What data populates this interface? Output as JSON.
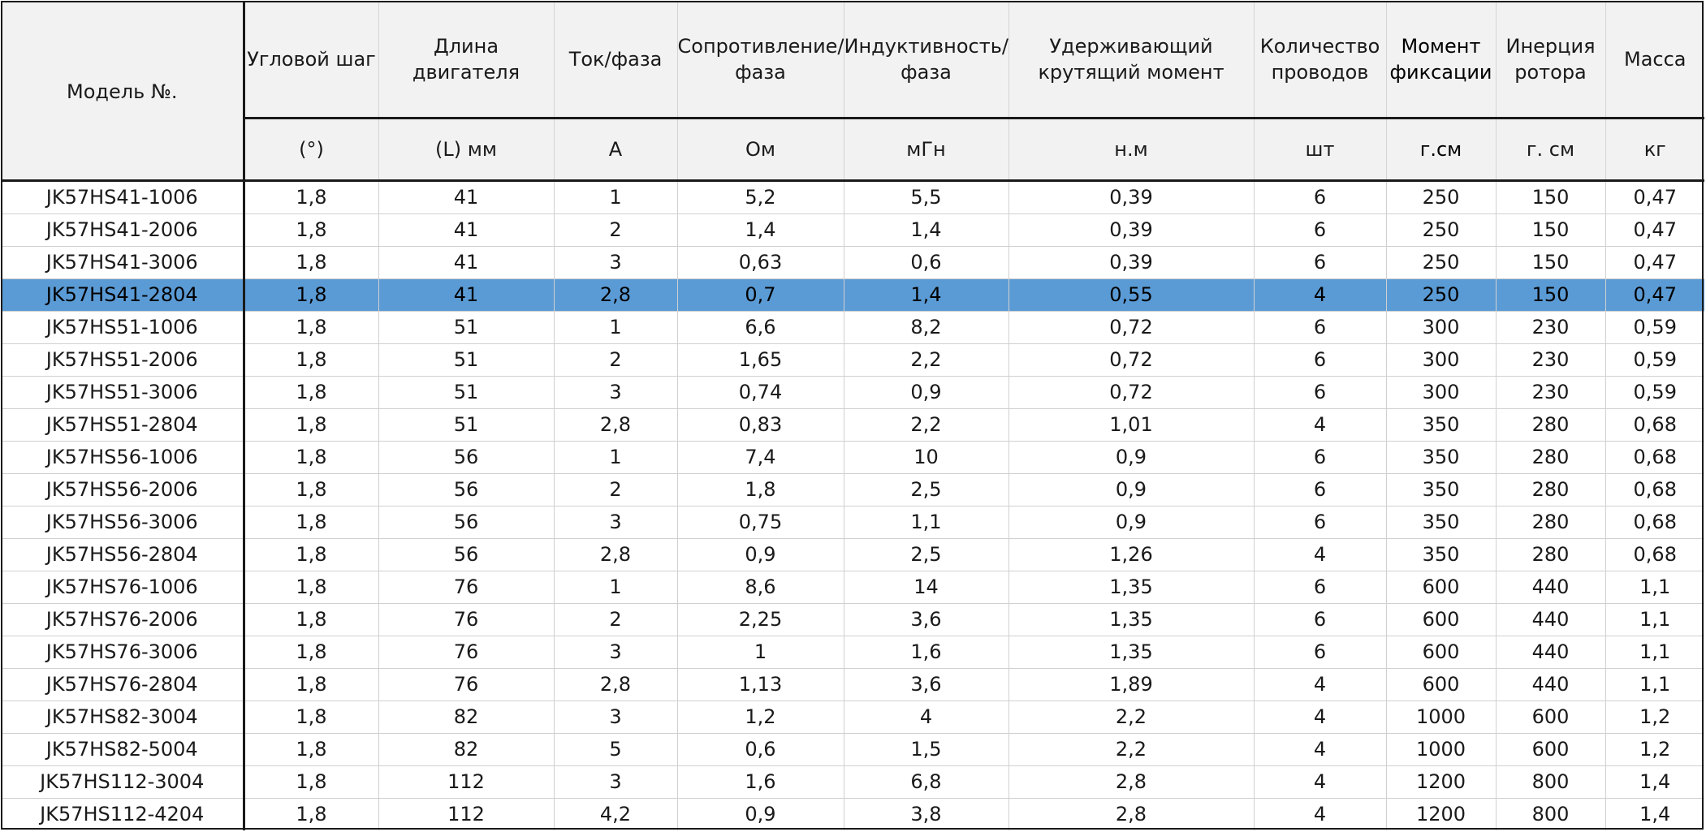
{
  "columns": [
    {
      "name": "Модель №.",
      "unit": ""
    },
    {
      "name": "Угловой шаг",
      "unit": "(°)"
    },
    {
      "name": "Длина двигателя",
      "unit": "(L) мм"
    },
    {
      "name": "Ток/фаза",
      "unit": "A"
    },
    {
      "name": "Сопротивление/ фаза",
      "unit": "Ом"
    },
    {
      "name": "Индуктивность/ фаза",
      "unit": "мГн"
    },
    {
      "name": "Удерживающий крутящий момент",
      "unit": "н.м"
    },
    {
      "name": "Количество проводов",
      "unit": "шт"
    },
    {
      "name": "Момент фиксации",
      "unit": "г.см"
    },
    {
      "name": "Инерция ротора",
      "unit": "г. см"
    },
    {
      "name": "Масса",
      "unit": "кг"
    }
  ],
  "highlighted_row": 3,
  "highlight_color": "#5b9bd5",
  "rows": [
    [
      "JK57HS41-1006",
      "1,8",
      "41",
      "1",
      "5,2",
      "5,5",
      "0,39",
      "6",
      "250",
      "150",
      "0,47"
    ],
    [
      "JK57HS41-2006",
      "1,8",
      "41",
      "2",
      "1,4",
      "1,4",
      "0,39",
      "6",
      "250",
      "150",
      "0,47"
    ],
    [
      "JK57HS41-3006",
      "1,8",
      "41",
      "3",
      "0,63",
      "0,6",
      "0,39",
      "6",
      "250",
      "150",
      "0,47"
    ],
    [
      "JK57HS41-2804",
      "1,8",
      "41",
      "2,8",
      "0,7",
      "1,4",
      "0,55",
      "4",
      "250",
      "150",
      "0,47"
    ],
    [
      "JK57HS51-1006",
      "1,8",
      "51",
      "1",
      "6,6",
      "8,2",
      "0,72",
      "6",
      "300",
      "230",
      "0,59"
    ],
    [
      "JK57HS51-2006",
      "1,8",
      "51",
      "2",
      "1,65",
      "2,2",
      "0,72",
      "6",
      "300",
      "230",
      "0,59"
    ],
    [
      "JK57HS51-3006",
      "1,8",
      "51",
      "3",
      "0,74",
      "0,9",
      "0,72",
      "6",
      "300",
      "230",
      "0,59"
    ],
    [
      "JK57HS51-2804",
      "1,8",
      "51",
      "2,8",
      "0,83",
      "2,2",
      "1,01",
      "4",
      "350",
      "280",
      "0,68"
    ],
    [
      "JK57HS56-1006",
      "1,8",
      "56",
      "1",
      "7,4",
      "10",
      "0,9",
      "6",
      "350",
      "280",
      "0,68"
    ],
    [
      "JK57HS56-2006",
      "1,8",
      "56",
      "2",
      "1,8",
      "2,5",
      "0,9",
      "6",
      "350",
      "280",
      "0,68"
    ],
    [
      "JK57HS56-3006",
      "1,8",
      "56",
      "3",
      "0,75",
      "1,1",
      "0,9",
      "6",
      "350",
      "280",
      "0,68"
    ],
    [
      "JK57HS56-2804",
      "1,8",
      "56",
      "2,8",
      "0,9",
      "2,5",
      "1,26",
      "4",
      "350",
      "280",
      "0,68"
    ],
    [
      "JK57HS76-1006",
      "1,8",
      "76",
      "1",
      "8,6",
      "14",
      "1,35",
      "6",
      "600",
      "440",
      "1,1"
    ],
    [
      "JK57HS76-2006",
      "1,8",
      "76",
      "2",
      "2,25",
      "3,6",
      "1,35",
      "6",
      "600",
      "440",
      "1,1"
    ],
    [
      "JK57HS76-3006",
      "1,8",
      "76",
      "3",
      "1",
      "1,6",
      "1,35",
      "6",
      "600",
      "440",
      "1,1"
    ],
    [
      "JK57HS76-2804",
      "1,8",
      "76",
      "2,8",
      "1,13",
      "3,6",
      "1,89",
      "4",
      "600",
      "440",
      "1,1"
    ],
    [
      "JK57HS82-3004",
      "1,8",
      "82",
      "3",
      "1,2",
      "4",
      "2,2",
      "4",
      "1000",
      "600",
      "1,2"
    ],
    [
      "JK57HS82-5004",
      "1,8",
      "82",
      "5",
      "0,6",
      "1,5",
      "2,2",
      "4",
      "1000",
      "600",
      "1,2"
    ],
    [
      "JK57HS112-3004",
      "1,8",
      "112",
      "3",
      "1,6",
      "6,8",
      "2,8",
      "4",
      "1200",
      "800",
      "1,4"
    ],
    [
      "JK57HS112-4204",
      "1,8",
      "112",
      "4,2",
      "0,9",
      "3,8",
      "2,8",
      "4",
      "1200",
      "800",
      "1,4"
    ]
  ]
}
